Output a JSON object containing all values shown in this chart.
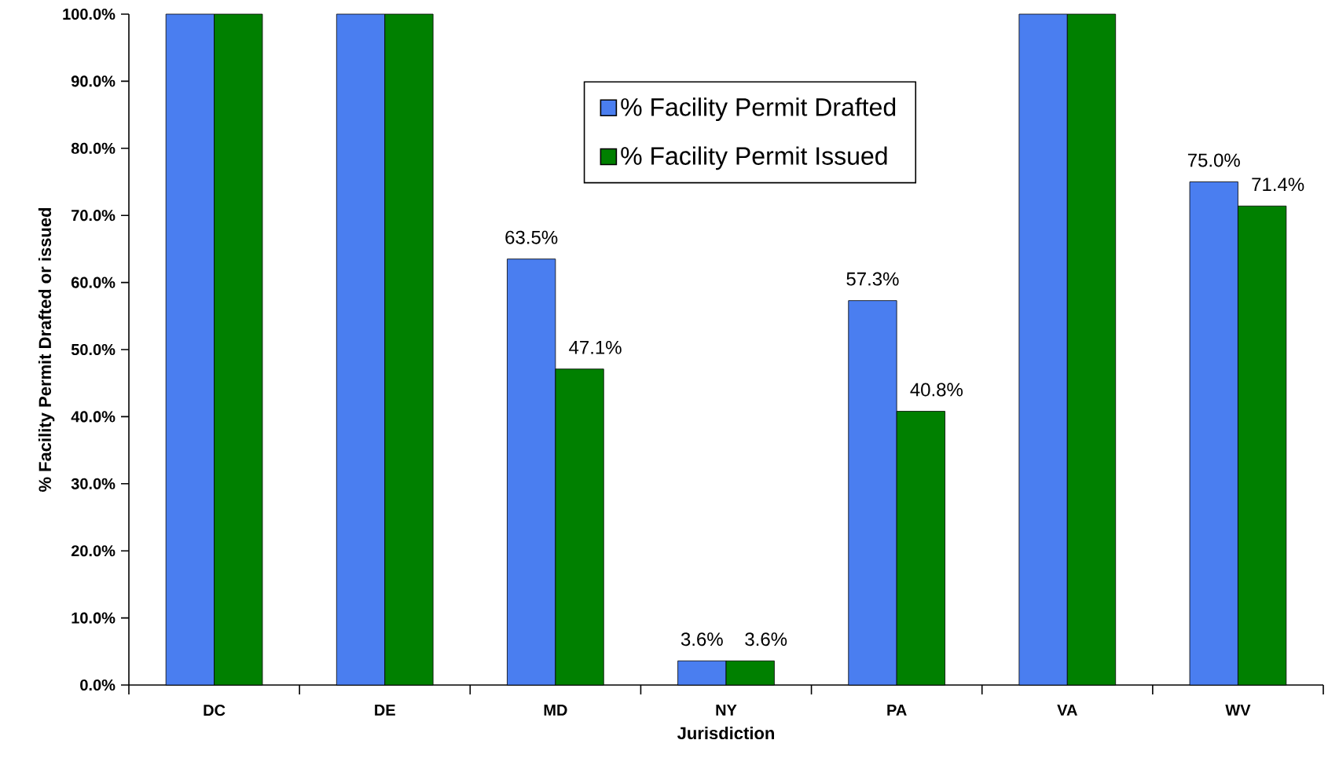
{
  "chart_data": {
    "type": "bar",
    "xlabel": "Jurisdiction",
    "ylabel": "% Facility Permit Drafted or issued",
    "categories": [
      "DC",
      "DE",
      "MD",
      "NY",
      "PA",
      "VA",
      "WV"
    ],
    "series": [
      {
        "name": "% Facility Permit Drafted",
        "color": "#4a7ef0",
        "values": [
          100,
          100,
          63.5,
          3.6,
          57.3,
          100,
          75.0
        ],
        "value_labels": [
          null,
          null,
          "63.5%",
          "3.6%",
          "57.3%",
          null,
          "75.0%"
        ]
      },
      {
        "name": "% Facility Permit Issued",
        "color": "#008000",
        "values": [
          100,
          100,
          47.1,
          3.6,
          40.8,
          100,
          71.4
        ],
        "value_labels": [
          null,
          null,
          "47.1%",
          "3.6%",
          "40.8%",
          null,
          "71.4%"
        ]
      }
    ],
    "ylim": [
      0,
      100
    ],
    "yticks": [
      {
        "value": 0,
        "label": "0.0%"
      },
      {
        "value": 10,
        "label": "10.0%"
      },
      {
        "value": 20,
        "label": "20.0%"
      },
      {
        "value": 30,
        "label": "30.0%"
      },
      {
        "value": 40,
        "label": "40.0%"
      },
      {
        "value": 50,
        "label": "50.0%"
      },
      {
        "value": 60,
        "label": "60.0%"
      },
      {
        "value": 70,
        "label": "70.0%"
      },
      {
        "value": 80,
        "label": "80.0%"
      },
      {
        "value": 90,
        "label": "90.0%"
      },
      {
        "value": 100,
        "label": "100.0%"
      }
    ],
    "legend": "top",
    "grid": false
  }
}
